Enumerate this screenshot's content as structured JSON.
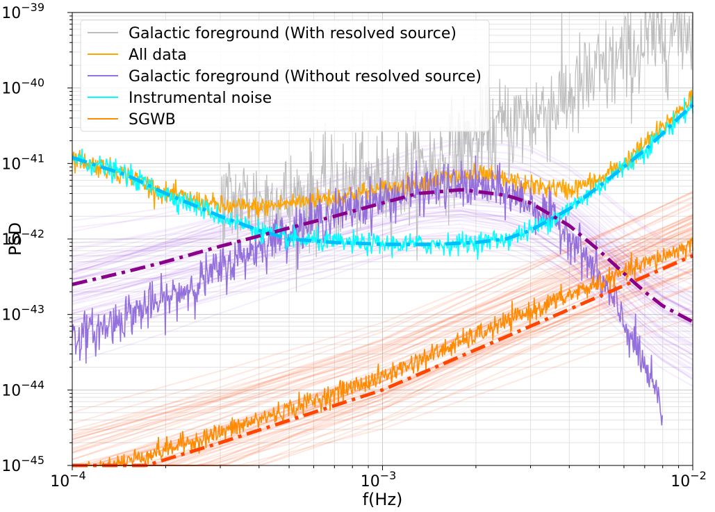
{
  "chart_data": {
    "type": "line",
    "xlabel": "f(Hz)",
    "ylabel": "PSD",
    "xscale": "log",
    "yscale": "log",
    "xlim": [
      0.0001,
      0.01
    ],
    "ylim": [
      1e-45,
      1e-39
    ],
    "grid": true,
    "legend_placement": "top-left",
    "x_ticks": [
      {
        "value": 0.0001,
        "base": "10",
        "exp": "−4"
      },
      {
        "value": 0.001,
        "base": "10",
        "exp": "−3"
      },
      {
        "value": 0.01,
        "base": "10",
        "exp": "−2"
      }
    ],
    "y_ticks": [
      {
        "value": 1e-45,
        "base": "10",
        "exp": "−45"
      },
      {
        "value": 1e-44,
        "base": "10",
        "exp": "−44"
      },
      {
        "value": 1e-43,
        "base": "10",
        "exp": "−43"
      },
      {
        "value": 1e-42,
        "base": "10",
        "exp": "−42"
      },
      {
        "value": 1e-41,
        "base": "10",
        "exp": "−41"
      },
      {
        "value": 1e-40,
        "base": "10",
        "exp": "−40"
      },
      {
        "value": 1e-39,
        "base": "10",
        "exp": "−39"
      }
    ],
    "legend": [
      {
        "label": "Galactic foreground (With resolved source)",
        "color": "#bdbdbd"
      },
      {
        "label": "All data",
        "color": "#ffa500"
      },
      {
        "label": "Galactic foreground (Without resolved source)",
        "color": "#9370db"
      },
      {
        "label": "Instrumental noise",
        "color": "#00ffff"
      },
      {
        "label": "SGWB",
        "color": "#ff8c00"
      }
    ],
    "series": [
      {
        "name": "Galactic foreground (With resolved source)",
        "color": "#bdbdbd",
        "x": [
          0.0003,
          0.0005,
          0.0007,
          0.001,
          0.0013,
          0.0016,
          0.002,
          0.0025,
          0.003,
          0.004,
          0.005,
          0.006,
          0.007,
          0.008,
          0.009,
          0.01
        ],
        "y": [
          3e-42,
          3.2e-42,
          4e-42,
          6e-42,
          8e-42,
          1.2e-41,
          2e-41,
          3e-41,
          4e-41,
          8e-41,
          1.5e-40,
          2.5e-40,
          3.5e-40,
          5e-40,
          6e-40,
          7e-40
        ]
      },
      {
        "name": "All data",
        "color": "#ffa500",
        "x": [
          0.0001,
          0.00015,
          0.0002,
          0.0003,
          0.0004,
          0.0005,
          0.0007,
          0.001,
          0.0013,
          0.0016,
          0.002,
          0.0025,
          0.003,
          0.004,
          0.005,
          0.006,
          0.007,
          0.008,
          0.009,
          0.01
        ],
        "y": [
          1.2e-41,
          7e-42,
          4e-42,
          2.7e-42,
          2.6e-42,
          3e-42,
          3.6e-42,
          4.5e-42,
          5.5e-42,
          6.5e-42,
          7e-42,
          6e-42,
          5e-42,
          4.5e-42,
          6e-42,
          1e-41,
          1.8e-41,
          3e-41,
          5e-41,
          8e-41
        ]
      },
      {
        "name": "Galactic foreground (Without resolved source)",
        "color": "#9370db",
        "x": [
          0.0001,
          0.00012,
          0.00015,
          0.0002,
          0.0003,
          0.0004,
          0.0005,
          0.0007,
          0.001,
          0.0013,
          0.0016,
          0.002,
          0.0025,
          0.003,
          0.004,
          0.005,
          0.006,
          0.007,
          0.008
        ],
        "y": [
          5e-44,
          6e-44,
          1e-43,
          1.5e-43,
          4e-43,
          8e-43,
          1.3e-42,
          2.2e-42,
          3.3e-42,
          4.3e-42,
          5e-42,
          5e-42,
          4e-42,
          3e-42,
          1.2e-42,
          3e-43,
          8e-44,
          2e-44,
          5e-45
        ]
      },
      {
        "name": "Instrumental noise",
        "color": "#00ffff",
        "x": [
          0.0001,
          0.00015,
          0.0002,
          0.0003,
          0.0004,
          0.0005,
          0.0007,
          0.001,
          0.0015,
          0.002,
          0.0025,
          0.003,
          0.004,
          0.005,
          0.006,
          0.007,
          0.008,
          0.009,
          0.01
        ],
        "y": [
          1.2e-41,
          7e-42,
          4e-42,
          2e-42,
          1.3e-42,
          1e-42,
          9e-43,
          8.5e-43,
          8.5e-43,
          9e-43,
          1e-42,
          1.3e-42,
          2.5e-42,
          5e-42,
          9e-42,
          1.5e-41,
          2.5e-41,
          4e-41,
          6e-41
        ]
      },
      {
        "name": "SGWB",
        "color": "#ff8c00",
        "x": [
          0.0001,
          0.0003,
          0.001,
          0.003,
          0.01
        ],
        "y": [
          7e-46,
          2.7e-45,
          1.5e-44,
          1.1e-43,
          8.5e-43
        ]
      },
      {
        "name": "",
        "color": "#00bfff",
        "dash": "dashdot",
        "x": [
          0.0001,
          0.00015,
          0.0002,
          0.0003,
          0.0004,
          0.0005,
          0.0007,
          0.001,
          0.0015,
          0.002,
          0.0025,
          0.003,
          0.004,
          0.005,
          0.006,
          0.007,
          0.008,
          0.009,
          0.01
        ],
        "y": [
          1.2e-41,
          7e-42,
          4e-42,
          2e-42,
          1.3e-42,
          1e-42,
          9e-43,
          8.5e-43,
          8.5e-43,
          9e-43,
          1e-42,
          1.3e-42,
          2.5e-42,
          5e-42,
          9e-42,
          1.5e-41,
          2.5e-41,
          4e-41,
          6e-41
        ]
      },
      {
        "name": "",
        "color": "#8b008b",
        "dash": "dashdot",
        "x": [
          0.0001,
          0.00015,
          0.0002,
          0.0003,
          0.0005,
          0.0007,
          0.001,
          0.0013,
          0.0018,
          0.0025,
          0.003,
          0.004,
          0.005,
          0.006,
          0.007,
          0.008,
          0.01
        ],
        "y": [
          2.5e-43,
          3.7e-43,
          5e-43,
          8e-43,
          1.4e-42,
          2e-42,
          3e-42,
          4e-42,
          4.5e-42,
          3.8e-42,
          3e-42,
          1.5e-42,
          7e-43,
          3.5e-43,
          2e-43,
          1.3e-43,
          8e-44
        ]
      },
      {
        "name": "",
        "color": "#ff4500",
        "dash": "dashdot",
        "x": [
          0.0001,
          0.0003,
          0.001,
          0.003,
          0.01
        ],
        "y": [
          5e-46,
          2e-45,
          1e-44,
          7e-44,
          6e-43
        ]
      }
    ]
  }
}
